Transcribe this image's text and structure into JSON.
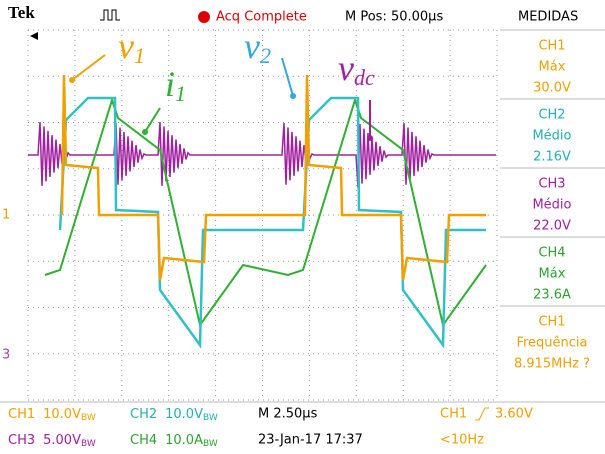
{
  "header": {
    "brand": "Tek",
    "status": "Acq Complete",
    "position": "M Pos: 50.00µs",
    "menu": "MEDIDAS"
  },
  "annotations": [
    {
      "main": "v",
      "sub": "1"
    },
    {
      "main": "i",
      "sub": "1"
    },
    {
      "main": "v",
      "sub": "2"
    },
    {
      "main": "v",
      "sub": "dc"
    }
  ],
  "markers": [
    "1",
    "3"
  ],
  "measurements": [
    {
      "source": "CH1",
      "kind": "Máx",
      "value": "30.0V"
    },
    {
      "source": "CH2",
      "kind": "Médio",
      "value": "2.16V"
    },
    {
      "source": "CH3",
      "kind": "Médio",
      "value": "22.0V"
    },
    {
      "source": "CH4",
      "kind": "Máx",
      "value": "23.6A"
    },
    {
      "source": "CH1",
      "kind": "Frequência",
      "value": "8.915MHz ?"
    }
  ],
  "footer": {
    "channels": [
      {
        "ch": "CH1",
        "scale": "10.0V",
        "bw": "BW"
      },
      {
        "ch": "CH2",
        "scale": "10.0V",
        "bw": "BW"
      },
      {
        "ch": "CH3",
        "scale": "5.00V",
        "bw": "BW"
      },
      {
        "ch": "CH4",
        "scale": "10.0A",
        "bw": "BW"
      }
    ],
    "timebase": "M 2.50µs",
    "date": "23-Jan-17 17:37",
    "trigger_source": "CH1",
    "trigger_level": "3.60V",
    "trigger_freq": "<10Hz"
  }
}
